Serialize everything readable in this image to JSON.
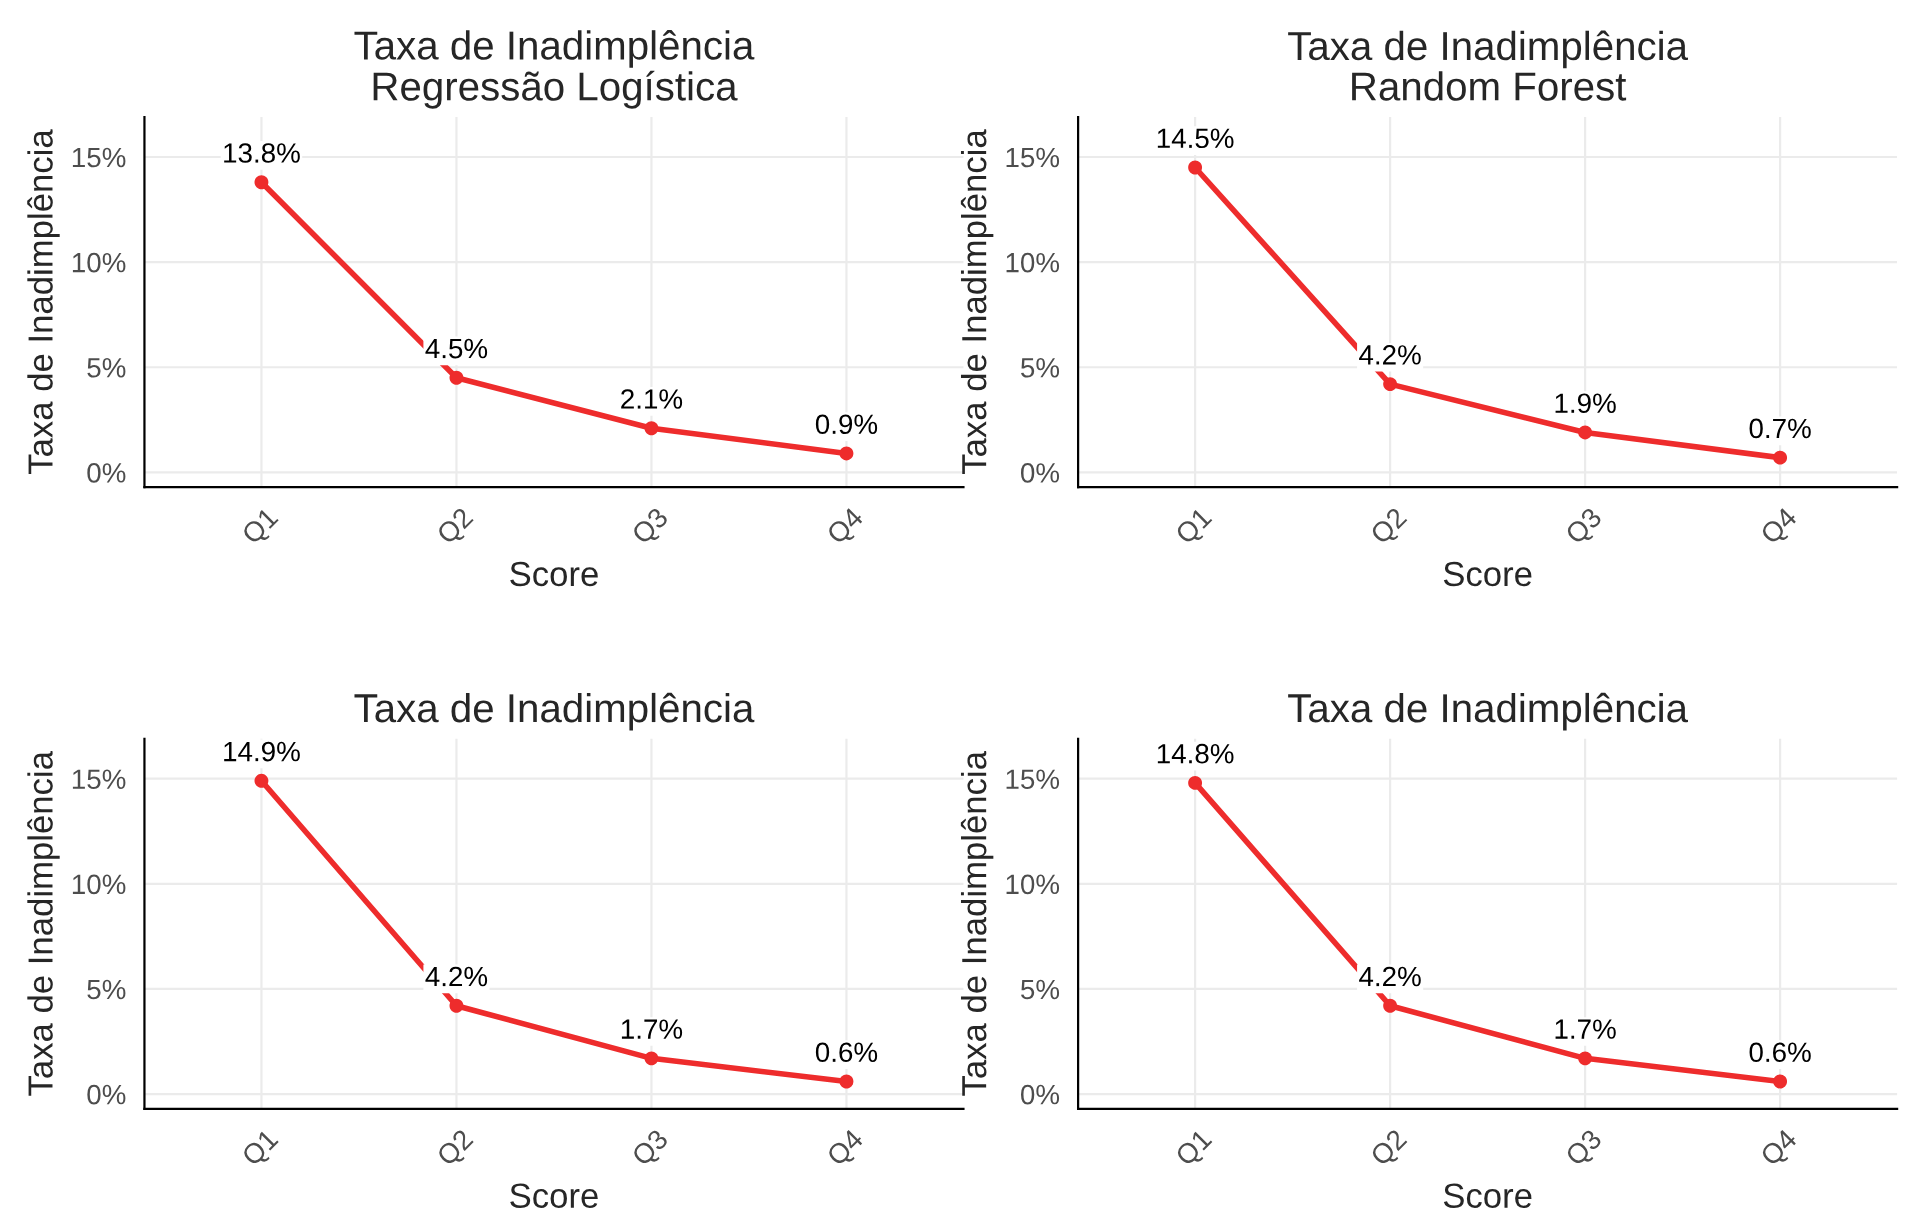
{
  "chart_data": [
    {
      "type": "line",
      "title": "Taxa de Inadimplência\nRegressão Logística",
      "xlabel": "Score",
      "ylabel": "Taxa de Inadimplência",
      "categories": [
        "Q1",
        "Q2",
        "Q3",
        "Q4"
      ],
      "values": [
        13.8,
        4.5,
        2.1,
        0.9
      ],
      "value_labels": [
        "13.8%",
        "4.5%",
        "2.1%",
        "0.9%"
      ],
      "color": "#ee2c2c",
      "marker": "circle",
      "ylim": [
        -0.7,
        16.9
      ],
      "yticks": [
        {
          "value": 0,
          "label": "0%"
        },
        {
          "value": 5,
          "label": "5%"
        },
        {
          "value": 10,
          "label": "10%"
        },
        {
          "value": 15,
          "label": "15%"
        }
      ],
      "grid": true,
      "legend": false
    },
    {
      "type": "line",
      "title": "Taxa de Inadimplência\nRandom Forest",
      "xlabel": "Score",
      "ylabel": "Taxa de Inadimplência",
      "categories": [
        "Q1",
        "Q2",
        "Q3",
        "Q4"
      ],
      "values": [
        14.5,
        4.2,
        1.9,
        0.7
      ],
      "value_labels": [
        "14.5%",
        "4.2%",
        "1.9%",
        "0.7%"
      ],
      "color": "#ee2c2c",
      "marker": "circle",
      "ylim": [
        -0.7,
        16.9
      ],
      "yticks": [
        {
          "value": 0,
          "label": "0%"
        },
        {
          "value": 5,
          "label": "5%"
        },
        {
          "value": 10,
          "label": "10%"
        },
        {
          "value": 15,
          "label": "15%"
        }
      ],
      "grid": true,
      "legend": false
    },
    {
      "type": "line",
      "title": "Taxa de Inadimplência",
      "xlabel": "Score",
      "ylabel": "Taxa de Inadimplência",
      "categories": [
        "Q1",
        "Q2",
        "Q3",
        "Q4"
      ],
      "values": [
        14.9,
        4.2,
        1.7,
        0.6
      ],
      "value_labels": [
        "14.9%",
        "4.2%",
        "1.7%",
        "0.6%"
      ],
      "color": "#ee2c2c",
      "marker": "circle",
      "ylim": [
        -0.7,
        16.9
      ],
      "yticks": [
        {
          "value": 0,
          "label": "0%"
        },
        {
          "value": 5,
          "label": "5%"
        },
        {
          "value": 10,
          "label": "10%"
        },
        {
          "value": 15,
          "label": "15%"
        }
      ],
      "grid": true,
      "legend": false
    },
    {
      "type": "line",
      "title": "Taxa de Inadimplência",
      "xlabel": "Score",
      "ylabel": "Taxa de Inadimplência",
      "categories": [
        "Q1",
        "Q2",
        "Q3",
        "Q4"
      ],
      "values": [
        14.8,
        4.2,
        1.7,
        0.6
      ],
      "value_labels": [
        "14.8%",
        "4.2%",
        "1.7%",
        "0.6%"
      ],
      "color": "#ee2c2c",
      "marker": "circle",
      "ylim": [
        -0.7,
        16.9
      ],
      "yticks": [
        {
          "value": 0,
          "label": "0%"
        },
        {
          "value": 5,
          "label": "5%"
        },
        {
          "value": 10,
          "label": "10%"
        },
        {
          "value": 15,
          "label": "15%"
        }
      ],
      "grid": true,
      "legend": false
    }
  ]
}
